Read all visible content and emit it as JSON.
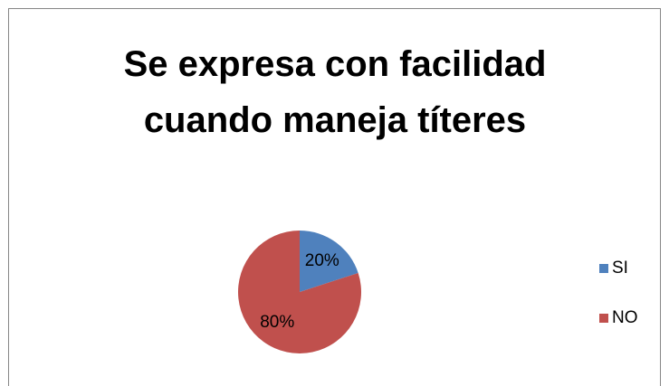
{
  "chart_data": {
    "type": "pie",
    "title": "Se expresa con facilidad cuando maneja títeres",
    "categories": [
      "SI",
      "NO"
    ],
    "values": [
      20,
      80
    ],
    "value_labels": [
      "20%",
      "80%"
    ],
    "colors": [
      "#4f81bd",
      "#c0504d"
    ],
    "legend": "right"
  }
}
